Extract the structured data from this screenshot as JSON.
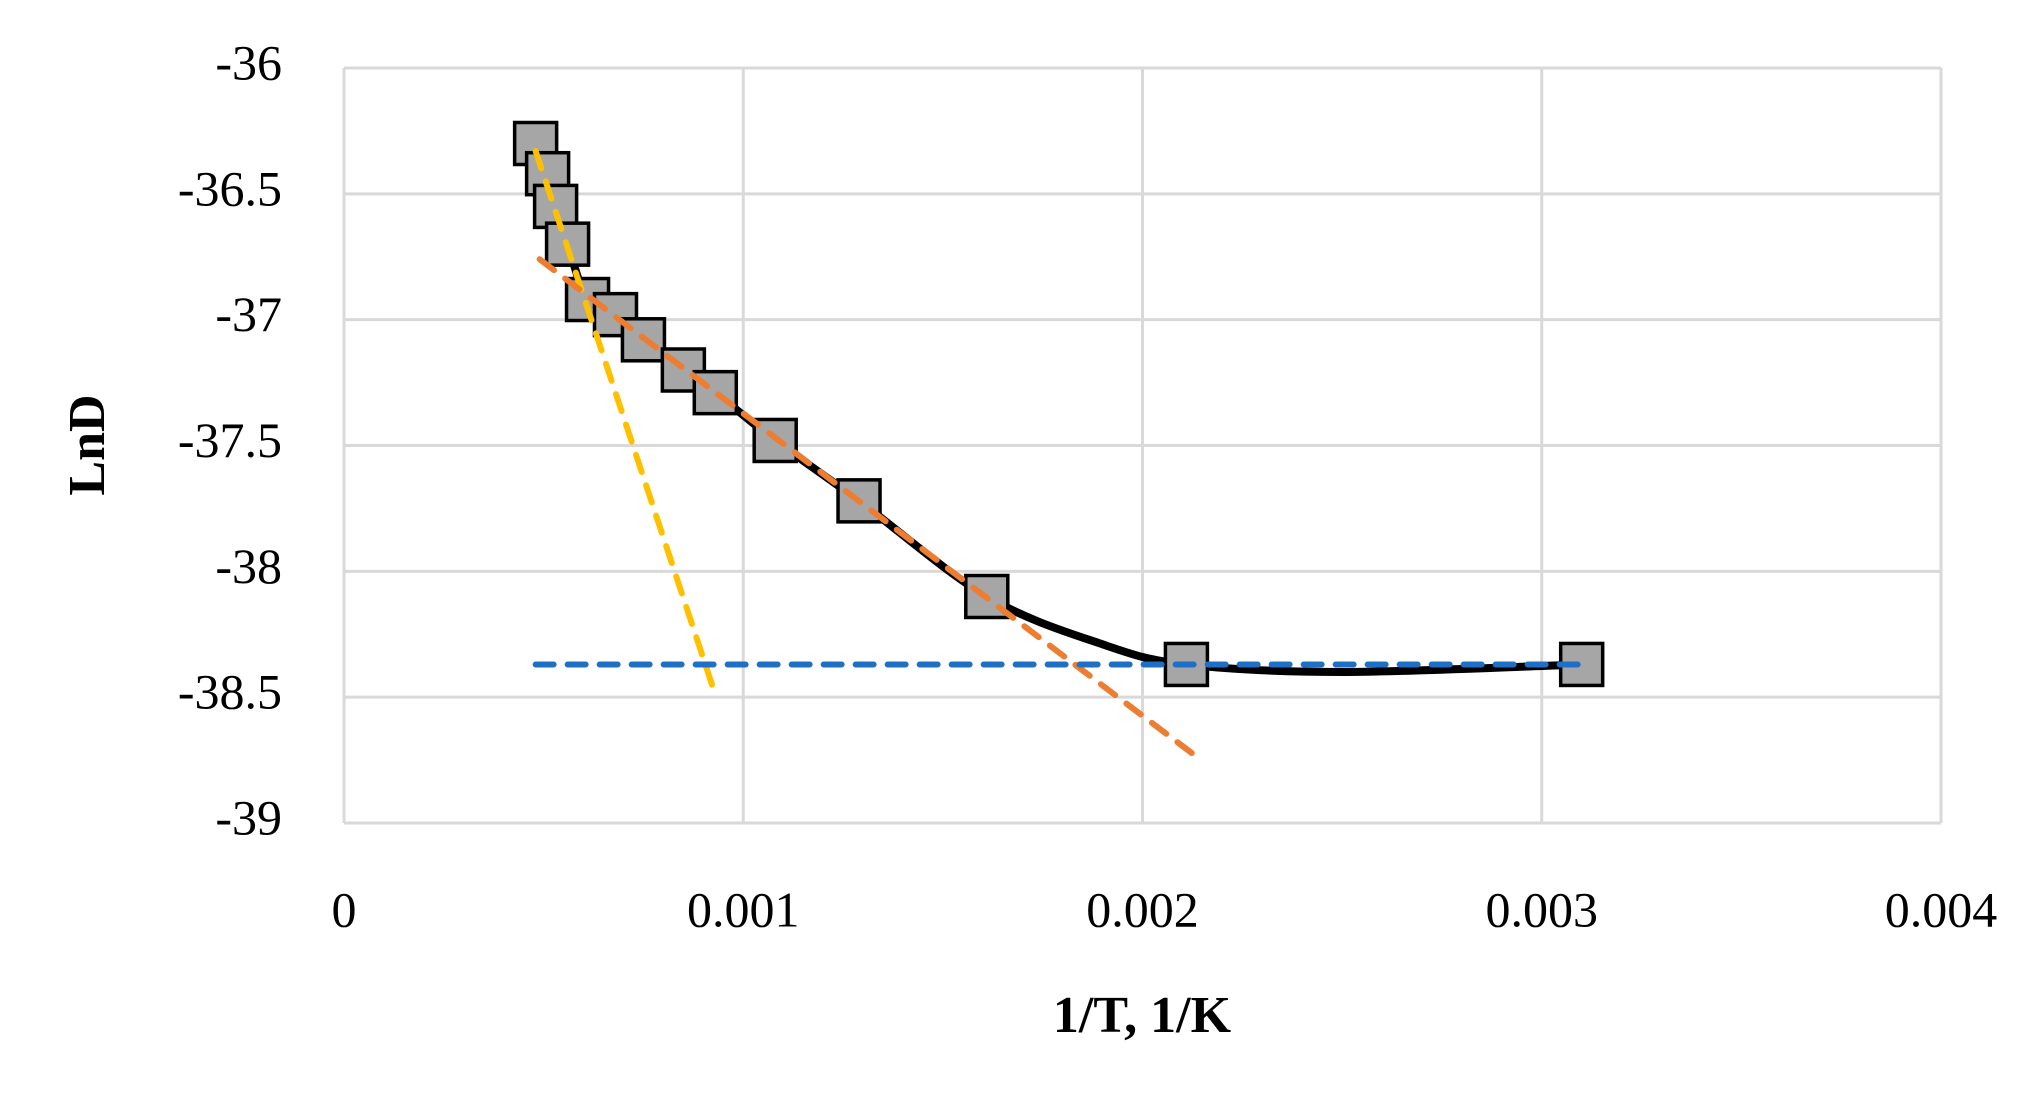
{
  "chart_data": {
    "type": "scatter",
    "x_label": "1/T, 1/K",
    "y_label": "LnD",
    "xlim": [
      0,
      0.004
    ],
    "xticks": [
      0,
      0.001,
      0.002,
      0.003,
      0.004
    ],
    "ylim": [
      -39,
      -36
    ],
    "yticks": [
      -36,
      -36.5,
      -37,
      -37.5,
      -38,
      -38.5,
      -39
    ],
    "grid": true,
    "series": [
      {
        "color": "#000000",
        "line": "solid",
        "x": [
          0.00048,
          0.00051,
          0.00053,
          0.00056,
          0.00061,
          0.00068,
          0.00075,
          0.00085,
          0.00093,
          0.00108,
          0.00129,
          0.00161,
          0.0019,
          0.00211,
          0.0025,
          0.0031
        ],
        "values": [
          -36.3,
          -36.42,
          -36.55,
          -36.7,
          -36.92,
          -36.98,
          -37.08,
          -37.2,
          -37.29,
          -37.48,
          -37.72,
          -38.1,
          -38.29,
          -38.37,
          -38.4,
          -38.37
        ]
      },
      {
        "color": "#a6a6a6",
        "marker": "square",
        "x": [
          0.00048,
          0.00051,
          0.00053,
          0.00056,
          0.00061,
          0.00068,
          0.00075,
          0.00085,
          0.00093,
          0.00108,
          0.00129,
          0.00161,
          0.00211,
          0.0031
        ],
        "values": [
          -36.3,
          -36.42,
          -36.55,
          -36.7,
          -36.92,
          -36.98,
          -37.08,
          -37.2,
          -37.29,
          -37.48,
          -37.72,
          -38.1,
          -38.37,
          -38.37
        ]
      },
      {
        "color": "#ffc000",
        "line": "dashed",
        "x": [
          0.00048,
          0.00093
        ],
        "values": [
          -36.33,
          -38.49
        ]
      },
      {
        "color": "#ed7d31",
        "line": "dashed",
        "x": [
          0.00049,
          0.00213
        ],
        "values": [
          -36.76,
          -38.73
        ]
      },
      {
        "color": "#1f6fc5",
        "line": "dashed",
        "x": [
          0.00048,
          0.0031
        ],
        "values": [
          -38.37,
          -38.37
        ]
      }
    ]
  }
}
